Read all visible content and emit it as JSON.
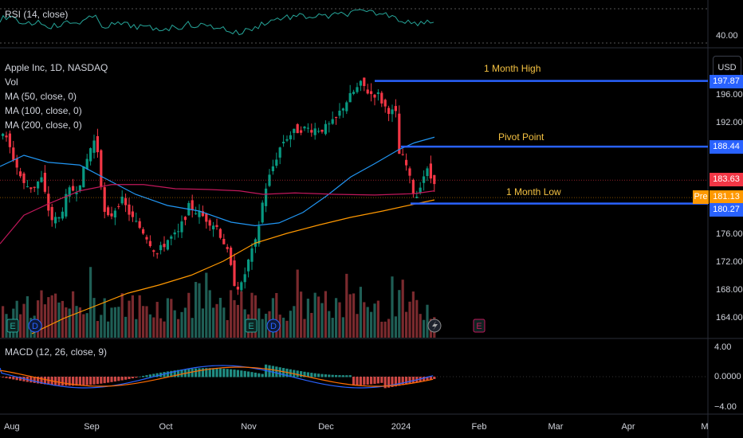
{
  "rsi": {
    "label": "RSI (14, close)",
    "axis_value": "40.00"
  },
  "main": {
    "title": "Apple Inc, 1D, NASDAQ",
    "vol_label": "Vol",
    "ma_labels": [
      "MA (50, close, 0)",
      "MA (100, close, 0)",
      "MA (200, close, 0)"
    ],
    "currency_button": "USD"
  },
  "annotations": {
    "month_high": "1 Month High",
    "pivot": "Pivot Point",
    "month_low": "1 Month Low"
  },
  "price_badges": {
    "month_high": "197.87",
    "pivot": "188.44",
    "last": "183.63",
    "pre_label": "Pre",
    "pre": "181.13",
    "month_low": "180.27"
  },
  "price_axis_ticks": [
    "196.00",
    "192.00",
    "188.00",
    "184.00",
    "180.00",
    "176.00",
    "172.00",
    "168.00",
    "164.00"
  ],
  "macd": {
    "label": "MACD (12, 26, close, 9)",
    "axis_ticks": [
      "4.00",
      "0.0000",
      "−4.00"
    ]
  },
  "time_axis": [
    "Aug",
    "Sep",
    "Oct",
    "Nov",
    "Dec",
    "2024",
    "Feb",
    "Mar",
    "Apr",
    "M"
  ],
  "event_markers": [
    "E",
    "D",
    "E",
    "D",
    "E"
  ],
  "colors": {
    "up": "#26a69a",
    "down": "#ef5350",
    "up_candle": "#089981",
    "down_candle": "#f23645",
    "ma50": "#2196f3",
    "ma100": "#c2185b",
    "ma200": "#ff9800",
    "level_line": "#2962ff",
    "annotation_text": "#f5c242",
    "rsi": "#26a69a"
  },
  "chart_data": {
    "type": "candlestick",
    "title": "Apple Inc, 1D, NASDAQ",
    "levels": {
      "month_high": 197.87,
      "pivot_point": 188.44,
      "month_low": 180.27,
      "last": 183.63,
      "pre_market": 181.13
    },
    "price_range": [
      162,
      199
    ],
    "x_labels": [
      "Aug",
      "Sep",
      "Oct",
      "Nov",
      "Dec",
      "2024",
      "Feb",
      "Mar",
      "Apr",
      "M"
    ]
  }
}
